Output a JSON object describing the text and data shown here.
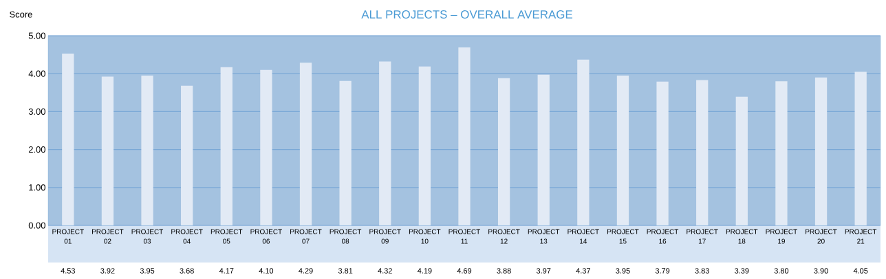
{
  "chart_data": {
    "type": "bar",
    "title": "ALL PROJECTS – OVERALL AVERAGE",
    "ylabel": "Score",
    "categories": [
      "PROJECT 01",
      "PROJECT 02",
      "PROJECT 03",
      "PROJECT 04",
      "PROJECT 05",
      "PROJECT 06",
      "PROJECT 07",
      "PROJECT 08",
      "PROJECT 09",
      "PROJECT 10",
      "PROJECT 11",
      "PROJECT 12",
      "PROJECT 13",
      "PROJECT 14",
      "PROJECT 15",
      "PROJECT 16",
      "PROJECT 17",
      "PROJECT 18",
      "PROJECT 19",
      "PROJECT 20",
      "PROJECT 21"
    ],
    "values": [
      4.53,
      3.92,
      3.95,
      3.68,
      4.17,
      4.1,
      4.29,
      3.81,
      4.32,
      4.19,
      4.69,
      3.88,
      3.97,
      4.37,
      3.95,
      3.79,
      3.83,
      3.39,
      3.8,
      3.9,
      4.05
    ],
    "value_labels": [
      "4.53",
      "3.92",
      "3.95",
      "3.68",
      "4.17",
      "4.10",
      "4.29",
      "3.81",
      "4.32",
      "4.19",
      "4.69",
      "3.88",
      "3.97",
      "4.37",
      "3.95",
      "3.79",
      "3.83",
      "3.39",
      "3.80",
      "3.90",
      "4.05"
    ],
    "color": "#e2eaf5",
    "ylim": [
      0,
      5
    ],
    "yticks": [
      {
        "value": 0,
        "label": "0.00"
      },
      {
        "value": 1,
        "label": "1.00"
      },
      {
        "value": 2,
        "label": "2.00"
      },
      {
        "value": 3,
        "label": "3.00"
      },
      {
        "value": 4,
        "label": "4.00"
      },
      {
        "value": 5,
        "label": "5.00"
      }
    ],
    "grid": "y"
  }
}
